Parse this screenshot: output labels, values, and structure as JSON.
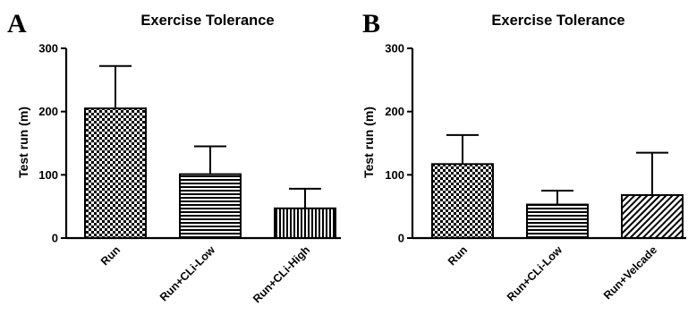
{
  "chart_data": [
    {
      "panel": "A",
      "type": "bar",
      "title": "Exercise Tolerance",
      "ylabel": "Test run (m)",
      "xlabel": "",
      "ylim": [
        0,
        300
      ],
      "yticks": [
        "0",
        "100",
        "200",
        "300"
      ],
      "grid": false,
      "categories": [
        "Run",
        "Run+CLi-Low",
        "Run+CLi-High"
      ],
      "values": [
        205,
        101,
        47
      ],
      "error_upper": [
        272,
        145,
        78
      ],
      "patterns": [
        "checker",
        "horizontal",
        "vertical"
      ]
    },
    {
      "panel": "B",
      "type": "bar",
      "title": "Exercise Tolerance",
      "ylabel": "Test run (m)",
      "xlabel": "",
      "ylim": [
        0,
        300
      ],
      "yticks": [
        "0",
        "100",
        "200",
        "300"
      ],
      "grid": false,
      "categories": [
        "Run",
        "Run+CLi-Low",
        "Run+Velcade"
      ],
      "values": [
        117,
        53,
        68
      ],
      "error_upper": [
        163,
        75,
        135
      ],
      "patterns": [
        "checker",
        "horizontal",
        "diagonal"
      ]
    }
  ]
}
